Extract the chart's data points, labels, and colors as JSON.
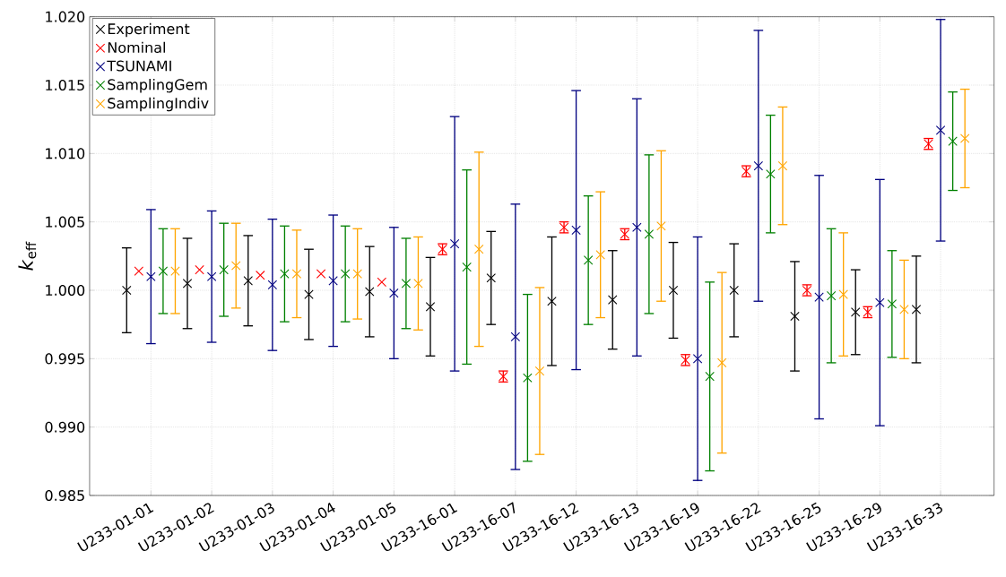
{
  "chart_data": {
    "type": "scatter",
    "ylabel": "*k*$_{eff}$",
    "categories": [
      "U233-01-01",
      "U233-01-02",
      "U233-01-03",
      "U233-01-04",
      "U233-01-05",
      "U233-16-01",
      "U233-16-07",
      "U233-16-12",
      "U233-16-13",
      "U233-16-19",
      "U233-16-22",
      "U233-16-25",
      "U233-16-29",
      "U233-16-33"
    ],
    "series": [
      {
        "name": "Experiment",
        "color": "#000000",
        "values": [
          1.0,
          1.0005,
          1.0007,
          0.9997,
          0.9999,
          0.9988,
          1.0009,
          0.9992,
          0.9993,
          1.0,
          1.0,
          0.9981,
          0.9984,
          0.9986
        ],
        "errors": [
          0.0031,
          0.0033,
          0.0033,
          0.0033,
          0.0033,
          0.0036,
          0.0034,
          0.0047,
          0.0036,
          0.0035,
          0.0034,
          0.004,
          0.0031,
          0.0039
        ]
      },
      {
        "name": "Nominal",
        "color": "#ff0000",
        "values": [
          1.0014,
          1.0015,
          1.0011,
          1.0012,
          1.0006,
          1.003,
          0.9937,
          1.0046,
          1.0041,
          0.9949,
          1.0087,
          1.0,
          0.9984,
          1.0107
        ],
        "errors": [
          null,
          null,
          null,
          null,
          null,
          0.0004,
          0.0004,
          0.0004,
          0.0004,
          0.0004,
          0.0004,
          0.0004,
          0.0004,
          0.0004
        ]
      },
      {
        "name": "TSUNAMI",
        "color": "#000080",
        "values": [
          1.001,
          1.001,
          1.0004,
          1.0007,
          0.9998,
          1.0034,
          0.9966,
          1.0044,
          1.0046,
          0.995,
          1.0091,
          0.9995,
          0.9991,
          1.0117
        ],
        "errors": [
          0.0049,
          0.0048,
          0.0048,
          0.0048,
          0.0048,
          0.0093,
          0.0097,
          0.0102,
          0.0094,
          0.0089,
          0.0099,
          0.0089,
          0.009,
          0.0081
        ]
      },
      {
        "name": "SamplingGem",
        "color": "#008000",
        "values": [
          1.0014,
          1.0015,
          1.0012,
          1.0012,
          1.0005,
          1.0017,
          0.9936,
          1.0022,
          1.0041,
          0.9937,
          1.0085,
          0.9996,
          0.999,
          1.0109
        ],
        "errors": [
          0.0031,
          0.0034,
          0.0035,
          0.0035,
          0.0033,
          0.0071,
          0.0061,
          0.0047,
          0.0058,
          0.0069,
          0.0043,
          0.0049,
          0.0039,
          0.0036
        ]
      },
      {
        "name": "SamplingIndiv",
        "color": "#ffa500",
        "values": [
          1.0014,
          1.0018,
          1.0012,
          1.0012,
          1.0005,
          1.003,
          0.9941,
          1.0026,
          1.0047,
          0.9947,
          1.0091,
          0.9997,
          0.9986,
          1.0111
        ],
        "errors": [
          0.0031,
          0.0031,
          0.0032,
          0.0033,
          0.0034,
          0.0071,
          0.0061,
          0.0046,
          0.0055,
          0.0066,
          0.0043,
          0.0045,
          0.0036,
          0.0036
        ]
      }
    ],
    "ylim": [
      0.985,
      1.02
    ],
    "yticks": [
      0.985,
      {
        "value": 0.99,
        "label": "0.990"
      },
      0.995,
      {
        "value": 1.0,
        "label": "1.000"
      },
      1.005,
      {
        "value": 1.01,
        "label": "1.010"
      },
      1.015,
      {
        "value": 1.02,
        "label": "1.020"
      }
    ],
    "grid": true,
    "legend": "top left",
    "marker": "cross"
  }
}
